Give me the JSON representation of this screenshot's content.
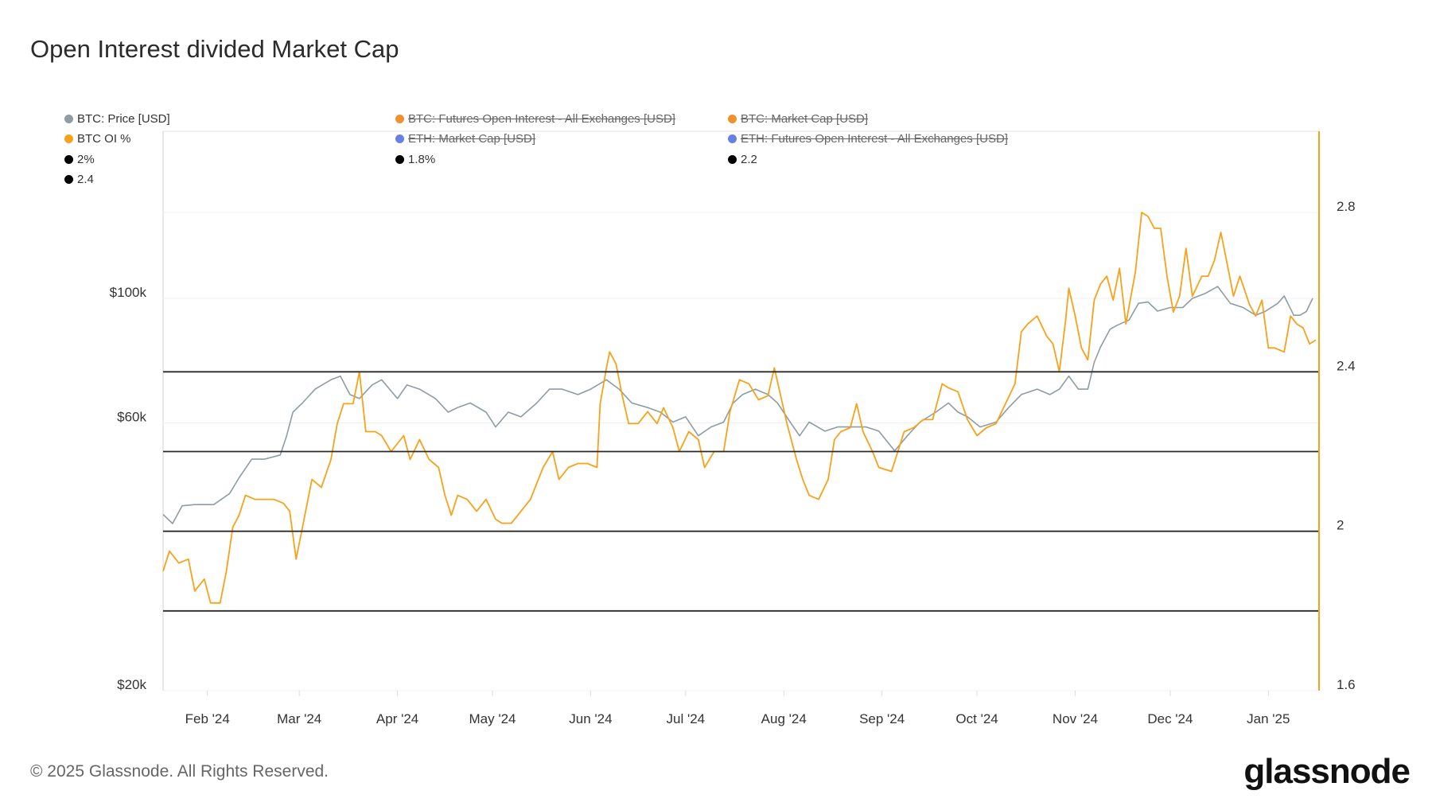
{
  "title": "Open Interest divided Market Cap",
  "legend": [
    {
      "label": "BTC: Price [USD]",
      "color": "#8e9ca3",
      "active": true
    },
    {
      "label": "BTC: Futures Open Interest - All Exchanges [USD]",
      "color": "#f0912e",
      "active": false
    },
    {
      "label": "BTC: Market Cap [USD]",
      "color": "#f0912e",
      "active": false
    },
    {
      "label": "BTC OI %",
      "color": "#f7a21b",
      "active": true
    },
    {
      "label": "ETH: Market Cap [USD]",
      "color": "#6680e3",
      "active": false
    },
    {
      "label": "ETH: Futures Open Interest - All Exchanges [USD]",
      "color": "#6680e3",
      "active": false
    },
    {
      "label": "2%",
      "color": "#000000",
      "active": true
    },
    {
      "label": "1.8%",
      "color": "#000000",
      "active": true
    },
    {
      "label": "2.2",
      "color": "#000000",
      "active": true
    },
    {
      "label": "2.4",
      "color": "#000000",
      "active": true
    }
  ],
  "footer": "© 2025 Glassnode. All Rights Reserved.",
  "logo": "glassnode",
  "chart_data": {
    "type": "line",
    "title": "Open Interest divided Market Cap",
    "xlim": [
      "2024-01-18",
      "2025-01-17"
    ],
    "x_ticks": [
      {
        "date": "2024-02-01",
        "label": "Feb '24"
      },
      {
        "date": "2024-03-01",
        "label": "Mar '24"
      },
      {
        "date": "2024-04-01",
        "label": "Apr '24"
      },
      {
        "date": "2024-05-01",
        "label": "May '24"
      },
      {
        "date": "2024-06-01",
        "label": "Jun '24"
      },
      {
        "date": "2024-07-01",
        "label": "Jul '24"
      },
      {
        "date": "2024-08-01",
        "label": "Aug '24"
      },
      {
        "date": "2024-09-01",
        "label": "Sep '24"
      },
      {
        "date": "2024-10-01",
        "label": "Oct '24"
      },
      {
        "date": "2024-11-01",
        "label": "Nov '24"
      },
      {
        "date": "2024-12-01",
        "label": "Dec '24"
      },
      {
        "date": "2025-01-01",
        "label": "Jan '25"
      }
    ],
    "y_left": {
      "scale": "log",
      "ylim": [
        20000,
        100000
      ],
      "ticks": [
        {
          "value": 20000,
          "label": "$20k"
        },
        {
          "value": 60000,
          "label": "$60k"
        },
        {
          "value": 100000,
          "label": "$100k"
        }
      ]
    },
    "y_right": {
      "scale": "linear",
      "ylim": [
        1.6,
        2.8
      ],
      "ticks": [
        {
          "value": 1.6,
          "label": "1.6"
        },
        {
          "value": 2,
          "label": "2"
        },
        {
          "value": 2.4,
          "label": "2.4"
        },
        {
          "value": 2.8,
          "label": "2.8"
        }
      ]
    },
    "grid": true,
    "legend_position": "top",
    "horizontal_lines": [
      {
        "name": "2%",
        "value": 2.0,
        "axis": "right",
        "color": "#000000"
      },
      {
        "name": "1.8%",
        "value": 1.8,
        "axis": "right",
        "color": "#000000"
      },
      {
        "name": "2.2",
        "value": 2.2,
        "axis": "right",
        "color": "#000000"
      },
      {
        "name": "2.4",
        "value": 2.4,
        "axis": "right",
        "color": "#000000"
      }
    ],
    "series": [
      {
        "name": "BTC: Price [USD]",
        "axis": "left",
        "color": "#8e9ca3",
        "x": [
          "2024-01-18",
          "2024-01-21",
          "2024-01-24",
          "2024-01-28",
          "2024-02-03",
          "2024-02-08",
          "2024-02-11",
          "2024-02-15",
          "2024-02-19",
          "2024-02-24",
          "2024-02-26",
          "2024-02-28",
          "2024-03-02",
          "2024-03-06",
          "2024-03-11",
          "2024-03-14",
          "2024-03-17",
          "2024-03-20",
          "2024-03-24",
          "2024-03-27",
          "2024-04-01",
          "2024-04-04",
          "2024-04-08",
          "2024-04-13",
          "2024-04-17",
          "2024-04-20",
          "2024-04-24",
          "2024-04-29",
          "2024-05-02",
          "2024-05-06",
          "2024-05-10",
          "2024-05-15",
          "2024-05-19",
          "2024-05-23",
          "2024-05-28",
          "2024-06-01",
          "2024-06-06",
          "2024-06-10",
          "2024-06-14",
          "2024-06-19",
          "2024-06-23",
          "2024-06-27",
          "2024-07-01",
          "2024-07-05",
          "2024-07-09",
          "2024-07-13",
          "2024-07-16",
          "2024-07-19",
          "2024-07-23",
          "2024-07-27",
          "2024-07-30",
          "2024-08-03",
          "2024-08-06",
          "2024-08-09",
          "2024-08-14",
          "2024-08-18",
          "2024-08-22",
          "2024-08-27",
          "2024-08-31",
          "2024-09-05",
          "2024-09-09",
          "2024-09-13",
          "2024-09-18",
          "2024-09-22",
          "2024-09-25",
          "2024-09-28",
          "2024-10-02",
          "2024-10-07",
          "2024-10-11",
          "2024-10-15",
          "2024-10-20",
          "2024-10-24",
          "2024-10-27",
          "2024-10-30",
          "2024-11-02",
          "2024-11-05",
          "2024-11-07",
          "2024-11-09",
          "2024-11-12",
          "2024-11-14",
          "2024-11-18",
          "2024-11-21",
          "2024-11-24",
          "2024-11-27",
          "2024-12-01",
          "2024-12-05",
          "2024-12-08",
          "2024-12-12",
          "2024-12-16",
          "2024-12-20",
          "2024-12-24",
          "2024-12-28",
          "2024-12-31",
          "2025-01-04",
          "2025-01-06",
          "2025-01-09",
          "2025-01-11",
          "2025-01-13",
          "2025-01-15"
        ],
        "y": [
          41200,
          39700,
          42700,
          42900,
          42900,
          44900,
          47900,
          51700,
          51700,
          52600,
          56900,
          62700,
          65100,
          68900,
          71600,
          72700,
          67400,
          66300,
          70100,
          71600,
          66300,
          70100,
          68900,
          66300,
          62700,
          63900,
          65100,
          62700,
          59000,
          62700,
          61500,
          65100,
          68900,
          68900,
          67400,
          68900,
          71600,
          68900,
          65100,
          63900,
          62700,
          60200,
          61500,
          56900,
          59000,
          60200,
          65100,
          67400,
          68900,
          67400,
          65100,
          60200,
          56900,
          60200,
          58000,
          59000,
          59000,
          59000,
          58000,
          53500,
          56900,
          60200,
          62700,
          65100,
          62700,
          61500,
          59000,
          60200,
          63900,
          67400,
          68900,
          67400,
          68900,
          72700,
          68900,
          68900,
          76900,
          81900,
          88100,
          89400,
          91500,
          98000,
          98500,
          94900,
          96300,
          96300,
          100000,
          102000,
          105000,
          98000,
          96300,
          93300,
          94800,
          98000,
          101000,
          93300,
          93300,
          94800,
          100000
        ]
      },
      {
        "name": "BTC OI %",
        "axis": "right",
        "color": "#f7a21b",
        "x": [
          "2024-01-18",
          "2024-01-20",
          "2024-01-23",
          "2024-01-26",
          "2024-01-28",
          "2024-01-31",
          "2024-02-02",
          "2024-02-05",
          "2024-02-07",
          "2024-02-09",
          "2024-02-11",
          "2024-02-13",
          "2024-02-16",
          "2024-02-19",
          "2024-02-22",
          "2024-02-25",
          "2024-02-27",
          "2024-02-29",
          "2024-03-02",
          "2024-03-05",
          "2024-03-08",
          "2024-03-11",
          "2024-03-13",
          "2024-03-15",
          "2024-03-18",
          "2024-03-20",
          "2024-03-22",
          "2024-03-25",
          "2024-03-27",
          "2024-03-30",
          "2024-04-03",
          "2024-04-05",
          "2024-04-08",
          "2024-04-11",
          "2024-04-14",
          "2024-04-16",
          "2024-04-18",
          "2024-04-20",
          "2024-04-23",
          "2024-04-26",
          "2024-04-29",
          "2024-05-02",
          "2024-05-04",
          "2024-05-07",
          "2024-05-10",
          "2024-05-13",
          "2024-05-15",
          "2024-05-17",
          "2024-05-20",
          "2024-05-22",
          "2024-05-25",
          "2024-05-28",
          "2024-05-31",
          "2024-06-03",
          "2024-06-04",
          "2024-06-06",
          "2024-06-07",
          "2024-06-09",
          "2024-06-11",
          "2024-06-13",
          "2024-06-16",
          "2024-06-19",
          "2024-06-22",
          "2024-06-24",
          "2024-06-27",
          "2024-06-29",
          "2024-07-02",
          "2024-07-05",
          "2024-07-07",
          "2024-07-10",
          "2024-07-13",
          "2024-07-15",
          "2024-07-18",
          "2024-07-21",
          "2024-07-24",
          "2024-07-27",
          "2024-07-29",
          "2024-07-31",
          "2024-08-02",
          "2024-08-05",
          "2024-08-07",
          "2024-08-09",
          "2024-08-12",
          "2024-08-15",
          "2024-08-17",
          "2024-08-19",
          "2024-08-22",
          "2024-08-24",
          "2024-08-26",
          "2024-08-29",
          "2024-08-31",
          "2024-09-04",
          "2024-09-06",
          "2024-09-08",
          "2024-09-11",
          "2024-09-14",
          "2024-09-17",
          "2024-09-20",
          "2024-09-22",
          "2024-09-25",
          "2024-09-28",
          "2024-10-01",
          "2024-10-04",
          "2024-10-07",
          "2024-10-10",
          "2024-10-13",
          "2024-10-15",
          "2024-10-17",
          "2024-10-20",
          "2024-10-23",
          "2024-10-25",
          "2024-10-27",
          "2024-10-29",
          "2024-10-30",
          "2024-11-01",
          "2024-11-03",
          "2024-11-05",
          "2024-11-07",
          "2024-11-09",
          "2024-11-11",
          "2024-11-13",
          "2024-11-15",
          "2024-11-17",
          "2024-11-20",
          "2024-11-22",
          "2024-11-24",
          "2024-11-26",
          "2024-11-28",
          "2024-11-30",
          "2024-12-02",
          "2024-12-04",
          "2024-12-06",
          "2024-12-08",
          "2024-12-11",
          "2024-12-13",
          "2024-12-15",
          "2024-12-17",
          "2024-12-19",
          "2024-12-21",
          "2024-12-23",
          "2024-12-26",
          "2024-12-28",
          "2024-12-30",
          "2025-01-01",
          "2025-01-03",
          "2025-01-06",
          "2025-01-08",
          "2025-01-10",
          "2025-01-12",
          "2025-01-14",
          "2025-01-16"
        ],
        "y": [
          1.9,
          1.95,
          1.92,
          1.93,
          1.85,
          1.88,
          1.82,
          1.82,
          1.9,
          2.01,
          2.04,
          2.09,
          2.08,
          2.08,
          2.08,
          2.07,
          2.05,
          1.93,
          2.01,
          2.13,
          2.11,
          2.18,
          2.27,
          2.32,
          2.32,
          2.4,
          2.25,
          2.25,
          2.24,
          2.2,
          2.24,
          2.18,
          2.23,
          2.18,
          2.16,
          2.09,
          2.04,
          2.09,
          2.08,
          2.05,
          2.08,
          2.03,
          2.02,
          2.02,
          2.05,
          2.08,
          2.12,
          2.16,
          2.2,
          2.13,
          2.16,
          2.17,
          2.17,
          2.16,
          2.32,
          2.41,
          2.45,
          2.42,
          2.34,
          2.27,
          2.27,
          2.3,
          2.27,
          2.31,
          2.26,
          2.2,
          2.25,
          2.23,
          2.16,
          2.2,
          2.2,
          2.3,
          2.38,
          2.37,
          2.33,
          2.34,
          2.41,
          2.34,
          2.27,
          2.18,
          2.13,
          2.09,
          2.08,
          2.13,
          2.23,
          2.25,
          2.26,
          2.32,
          2.25,
          2.2,
          2.16,
          2.15,
          2.2,
          2.25,
          2.26,
          2.28,
          2.28,
          2.37,
          2.36,
          2.35,
          2.28,
          2.24,
          2.26,
          2.27,
          2.32,
          2.37,
          2.5,
          2.52,
          2.54,
          2.49,
          2.47,
          2.4,
          2.53,
          2.61,
          2.54,
          2.46,
          2.43,
          2.58,
          2.62,
          2.64,
          2.58,
          2.66,
          2.52,
          2.65,
          2.8,
          2.79,
          2.76,
          2.76,
          2.64,
          2.55,
          2.59,
          2.71,
          2.59,
          2.64,
          2.64,
          2.68,
          2.75,
          2.67,
          2.59,
          2.64,
          2.57,
          2.54,
          2.58,
          2.46,
          2.46,
          2.45,
          2.54,
          2.52,
          2.51,
          2.47,
          2.48
        ]
      }
    ]
  }
}
